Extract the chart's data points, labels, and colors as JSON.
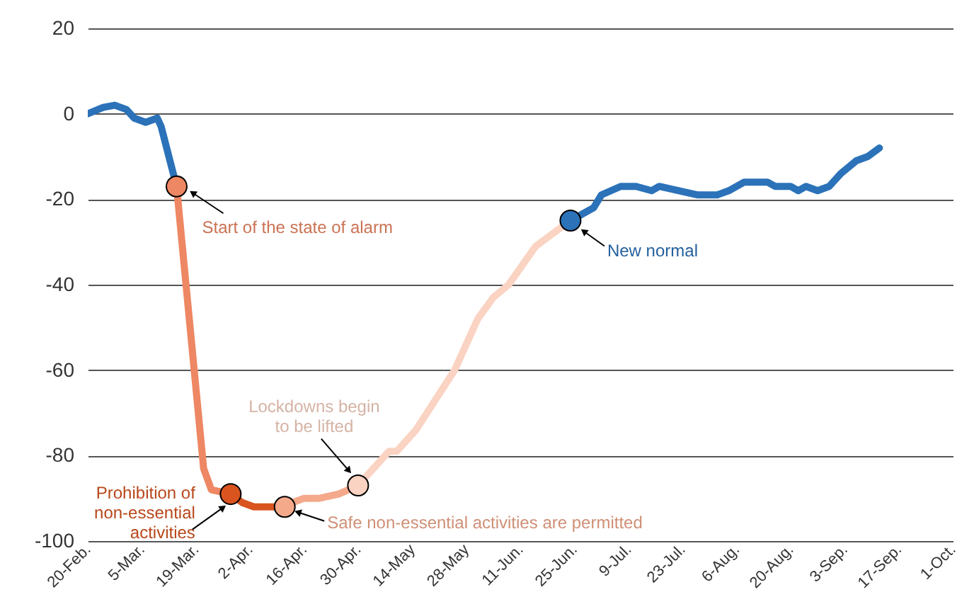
{
  "chart_data": {
    "type": "line",
    "xlim": [
      "--02-20",
      "--10-01"
    ],
    "xticks": [
      {
        "value": "--02-20",
        "label": "20-Feb."
      },
      {
        "value": "--03-05",
        "label": "5-Mar."
      },
      {
        "value": "--03-19",
        "label": "19-Mar."
      },
      {
        "value": "--04-02",
        "label": "2-Apr."
      },
      {
        "value": "--04-16",
        "label": "16-Apr."
      },
      {
        "value": "--04-30",
        "label": "30-Apr."
      },
      {
        "value": "--05-14",
        "label": "14-May"
      },
      {
        "value": "--05-28",
        "label": "28-May"
      },
      {
        "value": "--06-11",
        "label": "11-Jun."
      },
      {
        "value": "--06-25",
        "label": "25-Jun."
      },
      {
        "value": "--07-09",
        "label": "9-Jul."
      },
      {
        "value": "--07-23",
        "label": "23-Jul."
      },
      {
        "value": "--08-06",
        "label": "6-Aug."
      },
      {
        "value": "--08-20",
        "label": "20-Aug."
      },
      {
        "value": "--09-03",
        "label": "3-Sep."
      },
      {
        "value": "--09-17",
        "label": "17-Sep."
      },
      {
        "value": "--10-01",
        "label": "1-Oct."
      }
    ],
    "ylim": [
      -100,
      20
    ],
    "yticks": [
      -100,
      -80,
      -60,
      -40,
      -20,
      0,
      20
    ],
    "grid": "y",
    "line_style": "solid",
    "series": [
      {
        "color": "#2b72b9",
        "x": [
          "--02-20",
          "--02-24",
          "--02-27",
          "--03-01",
          "--03-03",
          "--03-06",
          "--03-09",
          "--03-10",
          "--03-12",
          "--03-14"
        ],
        "values": [
          0,
          1.5,
          2,
          1,
          -1,
          -2,
          -1,
          -3,
          -10,
          -17
        ]
      },
      {
        "color": "#ee8763",
        "x": [
          "--03-14",
          "--03-21",
          "--03-23",
          "--03-28"
        ],
        "values": [
          -17,
          -83,
          -88,
          -89
        ]
      },
      {
        "color": "#d9541f",
        "x": [
          "--03-28",
          "--03-31",
          "--04-03",
          "--04-07",
          "--04-11"
        ],
        "values": [
          -89,
          -91,
          -92,
          -92,
          -92
        ]
      },
      {
        "color": "#f4a98b",
        "x": [
          "--04-11",
          "--04-13",
          "--04-16",
          "--04-20",
          "--04-25",
          "--04-30"
        ],
        "values": [
          -92,
          -91,
          -90,
          -90,
          -89,
          -87
        ]
      },
      {
        "color": "#fad3c2",
        "x": [
          "--04-30",
          "--05-03",
          "--05-08",
          "--05-10",
          "--05-15",
          "--05-20",
          "--05-25",
          "--05-28",
          "--05-31",
          "--06-04",
          "--06-08",
          "--06-15",
          "--06-21",
          "--06-24"
        ],
        "values": [
          -87,
          -84,
          -79,
          -79,
          -74,
          -67,
          -60,
          -54,
          -48,
          -43,
          -40,
          -31,
          -27,
          -25
        ]
      },
      {
        "color": "#2b72b9",
        "x": [
          "--06-24",
          "--06-30",
          "--07-02",
          "--07-07",
          "--07-11",
          "--07-15",
          "--07-17",
          "--07-27",
          "--08-01",
          "--08-04",
          "--08-08",
          "--08-14",
          "--08-16",
          "--08-20",
          "--08-22",
          "--08-24",
          "--08-27",
          "--08-30",
          "--09-02",
          "--09-06",
          "--09-09",
          "--09-12"
        ],
        "values": [
          -25,
          -22,
          -19,
          -17,
          -17,
          -18,
          -17,
          -19,
          -19,
          -18,
          -16,
          -16,
          -17,
          -17,
          -18,
          -17,
          -18,
          -17,
          -14,
          -11,
          -10,
          -8
        ]
      },
      {
        "type": "scatter",
        "marker": "circle",
        "color": "#ee8763",
        "x": [
          "--03-14"
        ],
        "values": [
          -17
        ]
      },
      {
        "type": "scatter",
        "marker": "circle",
        "color": "#d9541f",
        "x": [
          "--03-28"
        ],
        "values": [
          -89
        ]
      },
      {
        "type": "scatter",
        "marker": "circle",
        "color": "#f4a98b",
        "x": [
          "--04-11"
        ],
        "values": [
          -92
        ]
      },
      {
        "type": "scatter",
        "marker": "circle",
        "color": "#fad3c2",
        "x": [
          "--04-30"
        ],
        "values": [
          -87
        ]
      },
      {
        "type": "scatter",
        "marker": "circle",
        "color": "#2b72b9",
        "x": [
          "--06-24"
        ],
        "values": [
          -25
        ]
      }
    ],
    "annotations": [
      {
        "text": "Start of the state of alarm",
        "x": "--03-14",
        "y": -17
      },
      {
        "text": "Prohibition of\nnon-essential\nactivities",
        "x": "--03-28",
        "y": -89
      },
      {
        "text": "Safe non-essential activities are permitted",
        "x": "--04-11",
        "y": -92
      },
      {
        "text": "Lockdowns begin\nto be lifted",
        "x": "--04-30",
        "y": -87
      },
      {
        "text": "New normal",
        "x": "--06-24",
        "y": -25
      }
    ]
  }
}
